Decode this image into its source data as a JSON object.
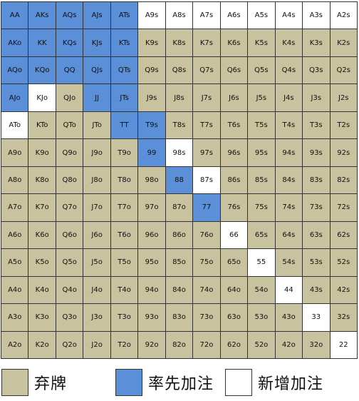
{
  "colors": {
    "fold": "#c9c29e",
    "raise": "#5b8fd8",
    "add": "#ffffff"
  },
  "grid": {
    "rows": [
      [
        [
          "AA",
          "raise"
        ],
        [
          "AKs",
          "raise"
        ],
        [
          "AQs",
          "raise"
        ],
        [
          "AJs",
          "raise"
        ],
        [
          "ATs",
          "raise"
        ],
        [
          "A9s",
          "add"
        ],
        [
          "A8s",
          "add"
        ],
        [
          "A7s",
          "add"
        ],
        [
          "A6s",
          "add"
        ],
        [
          "A5s",
          "add"
        ],
        [
          "A4s",
          "add"
        ],
        [
          "A3s",
          "add"
        ],
        [
          "A2s",
          "add"
        ]
      ],
      [
        [
          "AKo",
          "raise"
        ],
        [
          "KK",
          "raise"
        ],
        [
          "KQs",
          "raise"
        ],
        [
          "KJs",
          "raise"
        ],
        [
          "KTs",
          "raise"
        ],
        [
          "K9s",
          "fold"
        ],
        [
          "K8s",
          "fold"
        ],
        [
          "K7s",
          "fold"
        ],
        [
          "K6s",
          "fold"
        ],
        [
          "K5s",
          "fold"
        ],
        [
          "K4s",
          "fold"
        ],
        [
          "K3s",
          "fold"
        ],
        [
          "K2s",
          "fold"
        ]
      ],
      [
        [
          "AQo",
          "raise"
        ],
        [
          "KQo",
          "raise"
        ],
        [
          "QQ",
          "raise"
        ],
        [
          "QJs",
          "raise"
        ],
        [
          "QTs",
          "raise"
        ],
        [
          "Q9s",
          "fold"
        ],
        [
          "Q8s",
          "fold"
        ],
        [
          "Q7s",
          "fold"
        ],
        [
          "Q6s",
          "fold"
        ],
        [
          "Q5s",
          "fold"
        ],
        [
          "Q4s",
          "fold"
        ],
        [
          "Q3s",
          "fold"
        ],
        [
          "Q2s",
          "fold"
        ]
      ],
      [
        [
          "AJo",
          "raise"
        ],
        [
          "KJo",
          "add"
        ],
        [
          "QJo",
          "fold"
        ],
        [
          "JJ",
          "raise"
        ],
        [
          "JTs",
          "raise"
        ],
        [
          "J9s",
          "fold"
        ],
        [
          "J8s",
          "fold"
        ],
        [
          "J7s",
          "fold"
        ],
        [
          "J6s",
          "fold"
        ],
        [
          "J5s",
          "fold"
        ],
        [
          "J4s",
          "fold"
        ],
        [
          "J3s",
          "fold"
        ],
        [
          "J2s",
          "fold"
        ]
      ],
      [
        [
          "ATo",
          "add"
        ],
        [
          "KTo",
          "fold"
        ],
        [
          "QTo",
          "fold"
        ],
        [
          "JTo",
          "fold"
        ],
        [
          "TT",
          "raise"
        ],
        [
          "T9s",
          "raise"
        ],
        [
          "T8s",
          "fold"
        ],
        [
          "T7s",
          "fold"
        ],
        [
          "T6s",
          "fold"
        ],
        [
          "T5s",
          "fold"
        ],
        [
          "T4s",
          "fold"
        ],
        [
          "T3s",
          "fold"
        ],
        [
          "T2s",
          "fold"
        ]
      ],
      [
        [
          "A9o",
          "fold"
        ],
        [
          "K9o",
          "fold"
        ],
        [
          "Q9o",
          "fold"
        ],
        [
          "J9o",
          "fold"
        ],
        [
          "T9o",
          "fold"
        ],
        [
          "99",
          "raise"
        ],
        [
          "98s",
          "add"
        ],
        [
          "97s",
          "fold"
        ],
        [
          "96s",
          "fold"
        ],
        [
          "95s",
          "fold"
        ],
        [
          "94s",
          "fold"
        ],
        [
          "93s",
          "fold"
        ],
        [
          "92s",
          "fold"
        ]
      ],
      [
        [
          "A8o",
          "fold"
        ],
        [
          "K8o",
          "fold"
        ],
        [
          "Q8o",
          "fold"
        ],
        [
          "J8o",
          "fold"
        ],
        [
          "T8o",
          "fold"
        ],
        [
          "98o",
          "fold"
        ],
        [
          "88",
          "raise"
        ],
        [
          "87s",
          "add"
        ],
        [
          "86s",
          "fold"
        ],
        [
          "85s",
          "fold"
        ],
        [
          "84s",
          "fold"
        ],
        [
          "83s",
          "fold"
        ],
        [
          "82s",
          "fold"
        ]
      ],
      [
        [
          "A7o",
          "fold"
        ],
        [
          "K7o",
          "fold"
        ],
        [
          "Q7o",
          "fold"
        ],
        [
          "J7o",
          "fold"
        ],
        [
          "T7o",
          "fold"
        ],
        [
          "97o",
          "fold"
        ],
        [
          "87o",
          "fold"
        ],
        [
          "77",
          "raise"
        ],
        [
          "76s",
          "fold"
        ],
        [
          "75s",
          "fold"
        ],
        [
          "74s",
          "fold"
        ],
        [
          "73s",
          "fold"
        ],
        [
          "72s",
          "fold"
        ]
      ],
      [
        [
          "A6o",
          "fold"
        ],
        [
          "K6o",
          "fold"
        ],
        [
          "Q6o",
          "fold"
        ],
        [
          "J6o",
          "fold"
        ],
        [
          "T6o",
          "fold"
        ],
        [
          "96o",
          "fold"
        ],
        [
          "86o",
          "fold"
        ],
        [
          "76o",
          "fold"
        ],
        [
          "66",
          "add"
        ],
        [
          "65s",
          "fold"
        ],
        [
          "64s",
          "fold"
        ],
        [
          "63s",
          "fold"
        ],
        [
          "62s",
          "fold"
        ]
      ],
      [
        [
          "A5o",
          "fold"
        ],
        [
          "K5o",
          "fold"
        ],
        [
          "Q5o",
          "fold"
        ],
        [
          "J5o",
          "fold"
        ],
        [
          "T5o",
          "fold"
        ],
        [
          "95o",
          "fold"
        ],
        [
          "85o",
          "fold"
        ],
        [
          "75o",
          "fold"
        ],
        [
          "65o",
          "fold"
        ],
        [
          "55",
          "add"
        ],
        [
          "54s",
          "fold"
        ],
        [
          "53s",
          "fold"
        ],
        [
          "52s",
          "fold"
        ]
      ],
      [
        [
          "A4o",
          "fold"
        ],
        [
          "K4o",
          "fold"
        ],
        [
          "Q4o",
          "fold"
        ],
        [
          "J4o",
          "fold"
        ],
        [
          "T4o",
          "fold"
        ],
        [
          "94o",
          "fold"
        ],
        [
          "84o",
          "fold"
        ],
        [
          "74o",
          "fold"
        ],
        [
          "64o",
          "fold"
        ],
        [
          "54o",
          "fold"
        ],
        [
          "44",
          "add"
        ],
        [
          "43s",
          "fold"
        ],
        [
          "42s",
          "fold"
        ]
      ],
      [
        [
          "A3o",
          "fold"
        ],
        [
          "K3o",
          "fold"
        ],
        [
          "Q3o",
          "fold"
        ],
        [
          "J3o",
          "fold"
        ],
        [
          "T3o",
          "fold"
        ],
        [
          "93o",
          "fold"
        ],
        [
          "83o",
          "fold"
        ],
        [
          "73o",
          "fold"
        ],
        [
          "63o",
          "fold"
        ],
        [
          "53o",
          "fold"
        ],
        [
          "43o",
          "fold"
        ],
        [
          "33",
          "add"
        ],
        [
          "32s",
          "fold"
        ]
      ],
      [
        [
          "A2o",
          "fold"
        ],
        [
          "K2o",
          "fold"
        ],
        [
          "Q2o",
          "fold"
        ],
        [
          "J2o",
          "fold"
        ],
        [
          "T2o",
          "fold"
        ],
        [
          "92o",
          "fold"
        ],
        [
          "82o",
          "fold"
        ],
        [
          "72o",
          "fold"
        ],
        [
          "62o",
          "fold"
        ],
        [
          "52o",
          "fold"
        ],
        [
          "42o",
          "fold"
        ],
        [
          "32o",
          "fold"
        ],
        [
          "22",
          "add"
        ]
      ]
    ]
  },
  "legend": {
    "fold_label": "弃牌",
    "raise_label": "率先加注",
    "add_label": "新增加注"
  }
}
